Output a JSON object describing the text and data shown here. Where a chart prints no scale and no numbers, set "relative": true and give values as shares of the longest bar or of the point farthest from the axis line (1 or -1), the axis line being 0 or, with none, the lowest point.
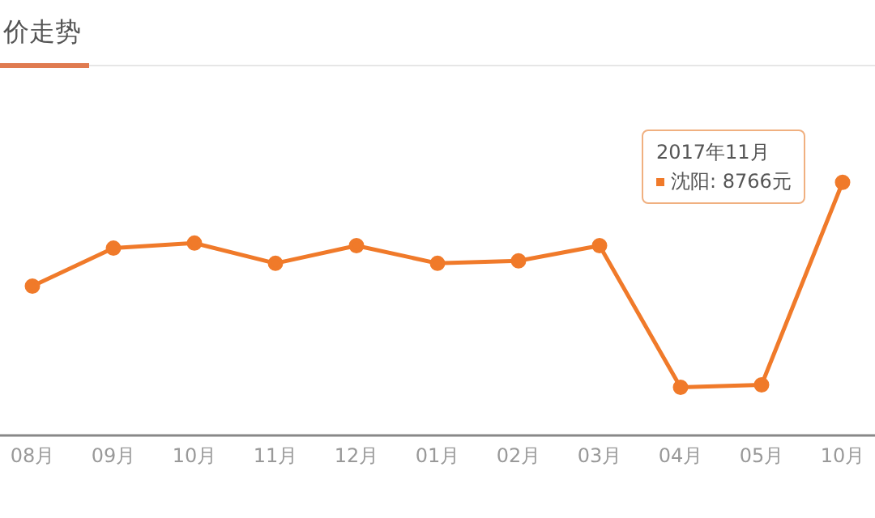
{
  "chart_data": {
    "type": "line",
    "title": "价走势",
    "relative": true,
    "categories": [
      "08月",
      "09月",
      "10月",
      "11月",
      "12月",
      "01月",
      "02月",
      "03月",
      "04月",
      "05月",
      "10月"
    ],
    "series": [
      {
        "color": "#f07a2a",
        "values": [
          0.59,
          0.74,
          0.76,
          0.68,
          0.75,
          0.68,
          0.69,
          0.75,
          0.19,
          0.2,
          1
        ]
      }
    ],
    "annotations": [
      "2017年11月",
      "沈阳: 8766元"
    ],
    "marker": "circle",
    "line_style": "solid"
  }
}
